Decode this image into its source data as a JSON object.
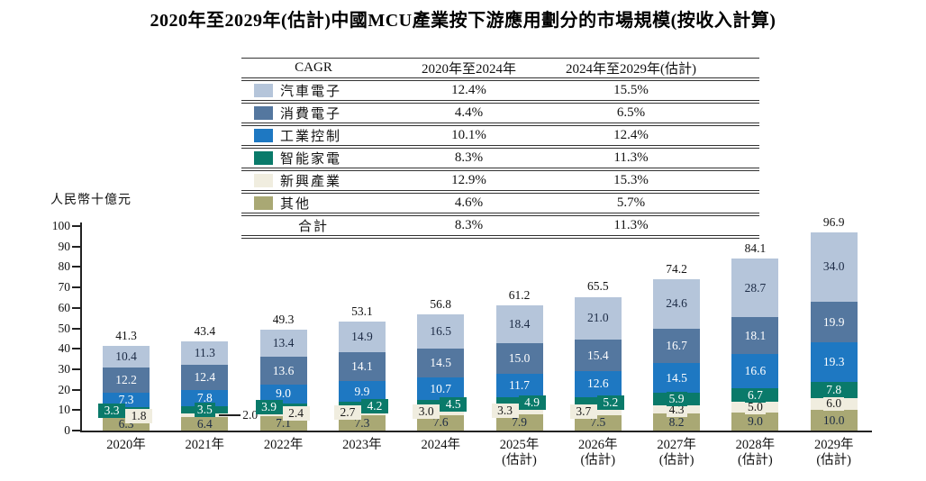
{
  "page": {
    "title": "2020年至2029年(估計)中國MCU產業按下游應用劃分的市場規模(按收入計算)"
  },
  "legend_table": {
    "header": {
      "col1": "CAGR",
      "col2": "2020年至2024年",
      "col3": "2024年至2029年(估計)"
    },
    "rows": [
      {
        "series_key": "汽車電子",
        "label": "汽車電子",
        "cagr_2020_2024": "12.4%",
        "cagr_2024_2029": "15.5%"
      },
      {
        "series_key": "消費電子",
        "label": "消費電子",
        "cagr_2020_2024": "4.4%",
        "cagr_2024_2029": "6.5%"
      },
      {
        "series_key": "工業控制",
        "label": "工業控制",
        "cagr_2020_2024": "10.1%",
        "cagr_2024_2029": "12.4%"
      },
      {
        "series_key": "智能家電",
        "label": "智能家電",
        "cagr_2020_2024": "8.3%",
        "cagr_2024_2029": "11.3%"
      },
      {
        "series_key": "新興產業",
        "label": "新興產業",
        "cagr_2020_2024": "12.9%",
        "cagr_2024_2029": "15.3%"
      },
      {
        "series_key": "其他",
        "label": "其他",
        "cagr_2020_2024": "4.6%",
        "cagr_2024_2029": "5.7%"
      }
    ],
    "total_row": {
      "label": "合計",
      "cagr_2020_2024": "8.3%",
      "cagr_2024_2029": "11.3%"
    }
  },
  "chart_data": {
    "type": "bar",
    "stacked": true,
    "title": "2020年至2029年(估計)中國MCU產業按下游應用劃分的市場規模(按收入計算)",
    "unit_label": "人民幣十億元",
    "ylim": [
      0,
      100
    ],
    "ytick_step": 10,
    "grid": false,
    "series_order": [
      "其他",
      "新興產業",
      "智能家電",
      "工業控制",
      "消費電子",
      "汽車電子"
    ],
    "series_colors": {
      "汽車電子": "#b5c5da",
      "消費電子": "#54779f",
      "工業控制": "#1e78c2",
      "智能家電": "#0a7a6a",
      "新興產業": "#f0eddf",
      "其他": "#a9a874"
    },
    "label_text_colors": {
      "汽車電子": "#1c2b45",
      "消費電子": "#ffffff",
      "工業控制": "#ffffff",
      "智能家電": "#ffffff",
      "新興產業": "#1a1a1a",
      "其他": "#1c2b45"
    },
    "years": [
      {
        "label": "2020年",
        "sublabel": "",
        "total": "41.3",
        "values": {
          "其他": "6.3",
          "新興產業": "1.8",
          "智能家電": "3.3",
          "工業控制": "7.3",
          "消費電子": "12.2",
          "汽車電子": "10.4"
        },
        "label_layout": {
          "智能家電": "left",
          "新興產業": "right"
        }
      },
      {
        "label": "2021年",
        "sublabel": "",
        "total": "43.4",
        "values": {
          "其他": "6.4",
          "新興產業": "2.0",
          "智能家電": "3.5",
          "工業控制": "7.8",
          "消費電子": "12.4",
          "汽車電子": "11.3"
        },
        "label_layout": {
          "智能家電": "center-box",
          "新興產業": "leader"
        }
      },
      {
        "label": "2022年",
        "sublabel": "",
        "total": "49.3",
        "values": {
          "其他": "7.1",
          "新興產業": "2.4",
          "智能家電": "3.9",
          "工業控制": "9.0",
          "消費電子": "13.6",
          "汽車電子": "13.4"
        },
        "label_layout": {
          "智能家電": "left",
          "新興產業": "right"
        }
      },
      {
        "label": "2023年",
        "sublabel": "",
        "total": "53.1",
        "values": {
          "其他": "7.3",
          "新興產業": "2.7",
          "智能家電": "4.2",
          "工業控制": "9.9",
          "消費電子": "14.1",
          "汽車電子": "14.9"
        },
        "label_layout": {
          "新興產業": "left",
          "智能家電": "right"
        }
      },
      {
        "label": "2024年",
        "sublabel": "",
        "total": "56.8",
        "values": {
          "其他": "7.6",
          "新興產業": "3.0",
          "智能家電": "4.5",
          "工業控制": "10.7",
          "消費電子": "14.5",
          "汽車電子": "16.5"
        },
        "label_layout": {
          "新興產業": "left",
          "智能家電": "right"
        }
      },
      {
        "label": "2025年",
        "sublabel": "(估計)",
        "total": "61.2",
        "values": {
          "其他": "7.9",
          "新興產業": "3.3",
          "智能家電": "4.9",
          "工業控制": "11.7",
          "消費電子": "15.0",
          "汽車電子": "18.4"
        },
        "label_layout": {
          "新興產業": "left",
          "智能家電": "right"
        }
      },
      {
        "label": "2026年",
        "sublabel": "(估計)",
        "total": "65.5",
        "values": {
          "其他": "7.5",
          "新興產業": "3.7",
          "智能家電": "5.2",
          "工業控制": "12.6",
          "消費電子": "15.4",
          "汽車電子": "21.0"
        },
        "label_layout": {
          "新興產業": "left",
          "智能家電": "right"
        }
      },
      {
        "label": "2027年",
        "sublabel": "(估計)",
        "total": "74.2",
        "values": {
          "其他": "8.2",
          "新興產業": "4.3",
          "智能家電": "5.9",
          "工業控制": "14.5",
          "消費電子": "16.7",
          "汽車電子": "24.6"
        }
      },
      {
        "label": "2028年",
        "sublabel": "(估計)",
        "total": "84.1",
        "values": {
          "其他": "9.0",
          "新興產業": "5.0",
          "智能家電": "6.7",
          "工業控制": "16.6",
          "消費電子": "18.1",
          "汽車電子": "28.7"
        }
      },
      {
        "label": "2029年",
        "sublabel": "(估計)",
        "total": "96.9",
        "values": {
          "其他": "10.0",
          "新興產業": "6.0",
          "智能家電": "7.8",
          "工業控制": "19.3",
          "消費電子": "19.9",
          "汽車電子": "34.0"
        }
      }
    ]
  }
}
